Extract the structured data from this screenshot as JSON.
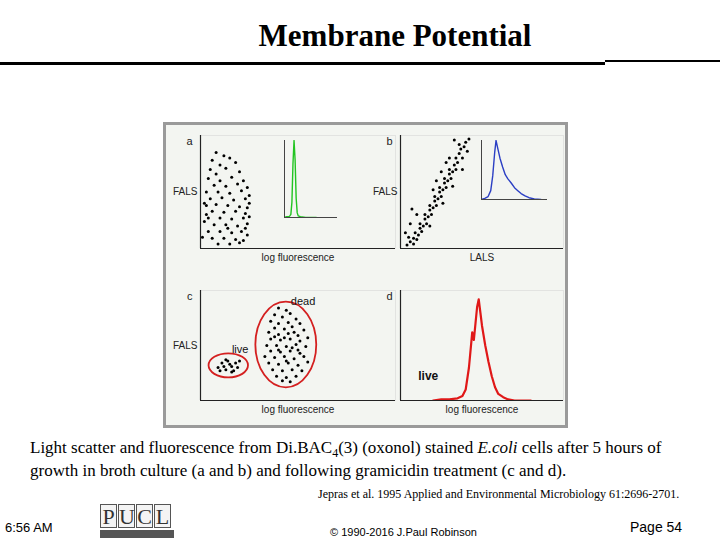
{
  "slide": {
    "title": "Membrane Potential",
    "caption": [
      {
        "text": "Light scatter and fluorescence from Di.BAC"
      },
      {
        "text": "4",
        "style": "sub"
      },
      {
        "text": "(3) (oxonol) stained "
      },
      {
        "text": "E.coli",
        "style": "italic"
      },
      {
        "text": " cells after 5 hours of growth in broth culture (a and b) and following gramicidin treatment (c and d)."
      }
    ],
    "citation": "Jepras et al. 1995 Applied and Environmental Microbiology 61:2696-2701.",
    "footer": {
      "time": "6:56 AM",
      "logo": "PUCL",
      "copyright": "© 1990-2016 J.Paul Robinson",
      "page": "Page 54"
    }
  },
  "chart_data": [
    {
      "type": "scatter",
      "title": "a",
      "x_label": "log fluorescence",
      "y_label": "FALS",
      "tick_labels": false,
      "xlim": [
        0,
        100
      ],
      "ylim": [
        0,
        100
      ],
      "color": "#000000",
      "x": [
        8,
        12,
        6,
        15,
        10,
        18,
        5,
        13,
        20,
        8,
        4,
        10,
        16,
        22,
        7,
        13,
        19,
        24,
        3,
        9,
        15,
        21,
        25,
        5,
        11,
        17,
        23,
        25,
        3,
        8,
        14,
        20,
        24,
        6,
        12,
        18,
        23,
        25,
        4,
        10,
        16,
        22,
        24,
        7,
        13,
        19,
        23,
        2,
        4,
        10,
        16,
        21,
        24,
        6,
        12,
        18,
        22,
        9,
        15,
        20,
        2,
        3,
        1,
        14
      ],
      "values": [
        85,
        82,
        78,
        80,
        74,
        76,
        70,
        71,
        68,
        66,
        62,
        60,
        63,
        60,
        56,
        55,
        57,
        54,
        50,
        50,
        49,
        51,
        47,
        44,
        45,
        43,
        44,
        40,
        38,
        39,
        38,
        37,
        36,
        33,
        32,
        33,
        31,
        28,
        27,
        27,
        26,
        27,
        22,
        21,
        21,
        20,
        18,
        24,
        15,
        15,
        14,
        15,
        12,
        9,
        9,
        8,
        7,
        4,
        4,
        5,
        40,
        30,
        10,
        18
      ],
      "inset": {
        "type": "line",
        "color": "#22c422",
        "xlim": [
          0,
          100
        ],
        "ylim": [
          0,
          100
        ],
        "x": [
          0,
          4,
          8,
          10,
          12,
          14,
          16,
          18,
          20,
          22,
          24,
          26,
          30,
          40,
          60
        ],
        "values": [
          0,
          1,
          1,
          2,
          4,
          20,
          70,
          100,
          75,
          25,
          6,
          2,
          1,
          0,
          0
        ]
      }
    },
    {
      "type": "scatter",
      "title": "b",
      "x_label": "LALS",
      "y_label": "FALS",
      "tick_labels": false,
      "xlim": [
        0,
        100
      ],
      "ylim": [
        0,
        100
      ],
      "color": "#000000",
      "x": [
        4,
        6,
        5,
        8,
        8,
        9,
        10,
        11,
        12,
        12,
        13,
        14,
        15,
        15,
        16,
        17,
        18,
        18,
        19,
        20,
        21,
        21,
        22,
        23,
        24,
        24,
        25,
        26,
        27,
        27,
        28,
        29,
        30,
        30,
        31,
        32,
        33,
        34,
        34,
        35,
        36,
        37,
        38,
        39,
        40,
        41,
        42,
        36,
        30,
        28,
        25,
        20,
        10,
        6,
        3,
        7,
        33,
        22,
        38,
        32,
        26,
        18
      ],
      "values": [
        3,
        6,
        10,
        4,
        9,
        14,
        8,
        12,
        18,
        22,
        15,
        20,
        26,
        30,
        22,
        28,
        34,
        38,
        30,
        36,
        42,
        46,
        38,
        44,
        50,
        54,
        46,
        52,
        58,
        62,
        54,
        60,
        66,
        70,
        62,
        68,
        74,
        80,
        70,
        76,
        84,
        88,
        80,
        90,
        94,
        86,
        97,
        92,
        80,
        76,
        68,
        52,
        30,
        22,
        14,
        35,
        96,
        60,
        70,
        55,
        40,
        20
      ],
      "inset": {
        "type": "line",
        "color": "#2b3fc4",
        "xlim": [
          0,
          100
        ],
        "ylim": [
          0,
          100
        ],
        "x": [
          0,
          5,
          10,
          14,
          17,
          20,
          22,
          25,
          28,
          32,
          36,
          40,
          45,
          50,
          55,
          60,
          66,
          72,
          80,
          90
        ],
        "values": [
          0,
          2,
          5,
          15,
          40,
          80,
          100,
          85,
          70,
          55,
          42,
          35,
          28,
          20,
          15,
          10,
          6,
          3,
          1,
          0
        ]
      }
    },
    {
      "type": "scatter",
      "title": "c",
      "x_label": "log fluorescence",
      "y_label": "FALS",
      "tick_labels": false,
      "xlim": [
        0,
        100
      ],
      "ylim": [
        0,
        100
      ],
      "series": [
        {
          "name": "live",
          "color": "#000000",
          "x": [
            9,
            11,
            13,
            14,
            16,
            17,
            18,
            12,
            15,
            19,
            10,
            20,
            13,
            16
          ],
          "values": [
            30,
            34,
            28,
            36,
            31,
            27,
            34,
            31,
            33,
            30,
            27,
            36,
            37,
            26
          ]
        },
        {
          "name": "dead",
          "color": "#000000",
          "x": [
            40,
            44,
            38,
            46,
            42,
            49,
            36,
            40,
            45,
            51,
            38,
            43,
            47,
            53,
            35,
            40,
            45,
            50,
            36,
            41,
            46,
            51,
            55,
            34,
            39,
            44,
            49,
            54,
            36,
            41,
            46,
            51,
            33,
            38,
            43,
            48,
            53,
            35,
            40,
            45,
            50,
            55,
            37,
            42,
            47,
            52,
            39,
            44,
            49,
            42,
            46,
            48,
            43,
            47,
            40,
            44,
            50,
            38
          ],
          "values": [
            84,
            82,
            78,
            79,
            76,
            74,
            72,
            70,
            71,
            70,
            66,
            65,
            67,
            64,
            62,
            60,
            61,
            59,
            56,
            55,
            56,
            54,
            57,
            50,
            50,
            49,
            51,
            49,
            45,
            44,
            45,
            43,
            40,
            39,
            40,
            38,
            40,
            34,
            33,
            34,
            32,
            35,
            28,
            27,
            28,
            27,
            22,
            21,
            22,
            18,
            17,
            62,
            57,
            48,
            46,
            36,
            46,
            58
          ]
        }
      ]
    },
    {
      "type": "line",
      "title": "d",
      "x_label": "log fluorescence",
      "tick_labels": false,
      "xlim": [
        0,
        100
      ],
      "ylim": [
        0,
        100
      ],
      "color": "#e01818",
      "x": [
        20,
        25,
        30,
        35,
        38,
        40,
        42,
        44,
        45,
        46,
        47,
        48,
        49,
        50,
        52,
        54,
        56,
        58,
        60,
        63,
        66,
        70,
        80
      ],
      "values": [
        0,
        1,
        1,
        2,
        4,
        10,
        30,
        62,
        55,
        70,
        85,
        92,
        80,
        68,
        50,
        35,
        22,
        12,
        6,
        3,
        1,
        0,
        0
      ],
      "annotations": [
        {
          "text": "live",
          "x": 17,
          "y": 22
        }
      ]
    }
  ]
}
